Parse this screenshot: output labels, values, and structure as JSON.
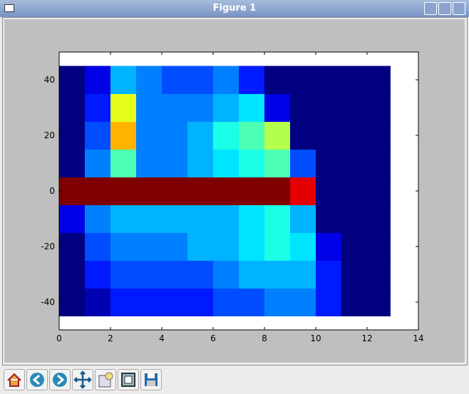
{
  "window": {
    "title": "Figure 1"
  },
  "chart_data": {
    "type": "heatmap",
    "xlim": [
      0,
      14
    ],
    "ylim": [
      -50,
      50
    ],
    "xticks": [
      0,
      2,
      4,
      6,
      8,
      10,
      12,
      14
    ],
    "yticks": [
      -40,
      -20,
      0,
      20,
      40
    ],
    "xedges": [
      0,
      1,
      2,
      3,
      4,
      5,
      6,
      7,
      8,
      9,
      10,
      11,
      12,
      12.9
    ],
    "yedges": [
      -45,
      -35,
      -25,
      -15,
      -5,
      5,
      15,
      25,
      35,
      45
    ],
    "colormap": "jet",
    "z": [
      [
        0,
        0.05,
        0.15,
        0.15,
        0.15,
        0.15,
        0.2,
        0.2,
        0.25,
        0.25,
        0.15,
        0,
        0
      ],
      [
        0,
        0.15,
        0.2,
        0.2,
        0.2,
        0.2,
        0.25,
        0.3,
        0.3,
        0.3,
        0.15,
        0,
        0
      ],
      [
        0,
        0.2,
        0.25,
        0.25,
        0.25,
        0.3,
        0.3,
        0.35,
        0.4,
        0.35,
        0.1,
        0,
        0
      ],
      [
        0.1,
        0.25,
        0.3,
        0.3,
        0.3,
        0.3,
        0.3,
        0.35,
        0.4,
        0.3,
        0,
        0,
        0
      ],
      [
        1,
        1,
        1,
        1,
        1,
        1,
        1,
        1,
        1,
        0.9,
        0,
        0,
        0
      ],
      [
        0,
        0.25,
        0.45,
        0.25,
        0.25,
        0.3,
        0.35,
        0.4,
        0.45,
        0.2,
        0,
        0,
        0
      ],
      [
        0,
        0.2,
        0.7,
        0.25,
        0.25,
        0.3,
        0.4,
        0.45,
        0.55,
        0,
        0,
        0,
        0
      ],
      [
        0,
        0.15,
        0.6,
        0.25,
        0.25,
        0.25,
        0.3,
        0.35,
        0.1,
        0,
        0,
        0,
        0
      ],
      [
        0,
        0.1,
        0.3,
        0.25,
        0.2,
        0.2,
        0.25,
        0.15,
        0,
        0,
        0,
        0,
        0
      ]
    ]
  }
}
